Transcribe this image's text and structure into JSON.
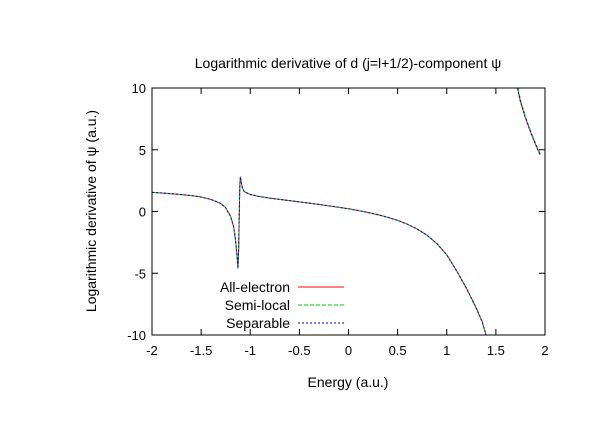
{
  "chart_data": {
    "type": "line",
    "title": "Logarithmic derivative of d (j=l+1/2)-component ψ",
    "xlabel": "Energy (a.u.)",
    "ylabel": "Logarithmic derivative of ψ (a.u.)",
    "xlim": [
      -2,
      2
    ],
    "ylim": [
      -10,
      10
    ],
    "xticks": [
      -2,
      -1.5,
      -1,
      -0.5,
      0,
      0.5,
      1,
      1.5,
      2
    ],
    "xtick_labels": [
      "-2",
      "-1.5",
      "-1",
      "-0.5",
      "0",
      "0.5",
      "1",
      "1.5",
      "2"
    ],
    "yticks": [
      -10,
      -5,
      0,
      5,
      10
    ],
    "ytick_labels": [
      "-10",
      "-5",
      "0",
      "5",
      "10"
    ],
    "grid": false,
    "legend_position": "bottom-left",
    "series": [
      {
        "name": "All-electron",
        "color": "#ff0000",
        "dash": "solid",
        "branches": [
          [
            [
              -2.0,
              1.55
            ],
            [
              -1.9,
              1.5
            ],
            [
              -1.8,
              1.44
            ],
            [
              -1.7,
              1.37
            ],
            [
              -1.6,
              1.29
            ],
            [
              -1.5,
              1.17
            ],
            [
              -1.4,
              0.98
            ],
            [
              -1.3,
              0.65
            ],
            [
              -1.25,
              0.3
            ],
            [
              -1.2,
              -0.4
            ],
            [
              -1.17,
              -1.2
            ],
            [
              -1.15,
              -2.3
            ],
            [
              -1.135,
              -3.6
            ],
            [
              -1.125,
              -4.6
            ],
            [
              -1.118,
              -3.0
            ],
            [
              -1.112,
              -0.2
            ],
            [
              -1.106,
              2.2
            ],
            [
              -1.1,
              2.8
            ],
            [
              -1.09,
              2.3
            ],
            [
              -1.08,
              1.9
            ],
            [
              -1.06,
              1.6
            ],
            [
              -1.0,
              1.38
            ],
            [
              -0.9,
              1.2
            ],
            [
              -0.8,
              1.08
            ],
            [
              -0.7,
              0.98
            ],
            [
              -0.6,
              0.88
            ],
            [
              -0.5,
              0.78
            ],
            [
              -0.4,
              0.68
            ],
            [
              -0.3,
              0.57
            ],
            [
              -0.2,
              0.46
            ],
            [
              -0.1,
              0.34
            ],
            [
              0.0,
              0.22
            ],
            [
              0.1,
              0.08
            ],
            [
              0.2,
              -0.08
            ],
            [
              0.3,
              -0.26
            ],
            [
              0.4,
              -0.47
            ],
            [
              0.5,
              -0.72
            ],
            [
              0.6,
              -1.03
            ],
            [
              0.7,
              -1.42
            ],
            [
              0.8,
              -1.92
            ],
            [
              0.9,
              -2.6
            ],
            [
              1.0,
              -3.5
            ],
            [
              1.1,
              -4.8
            ],
            [
              1.2,
              -6.2
            ],
            [
              1.3,
              -7.8
            ],
            [
              1.36,
              -8.9
            ],
            [
              1.4,
              -10.0
            ]
          ],
          [
            [
              1.72,
              10.0
            ],
            [
              1.75,
              8.9
            ],
            [
              1.8,
              7.6
            ],
            [
              1.85,
              6.5
            ],
            [
              1.9,
              5.5
            ],
            [
              1.95,
              4.6
            ]
          ]
        ]
      },
      {
        "name": "Semi-local",
        "color": "#00cc00",
        "dash": "dashed",
        "branches": [
          [
            [
              -2.0,
              1.55
            ],
            [
              -1.9,
              1.5
            ],
            [
              -1.8,
              1.44
            ],
            [
              -1.7,
              1.37
            ],
            [
              -1.6,
              1.29
            ],
            [
              -1.5,
              1.17
            ],
            [
              -1.4,
              0.98
            ],
            [
              -1.3,
              0.65
            ],
            [
              -1.25,
              0.3
            ],
            [
              -1.2,
              -0.4
            ],
            [
              -1.17,
              -1.2
            ],
            [
              -1.15,
              -2.3
            ],
            [
              -1.135,
              -3.6
            ],
            [
              -1.125,
              -4.6
            ],
            [
              -1.118,
              -3.0
            ],
            [
              -1.112,
              -0.2
            ],
            [
              -1.106,
              2.2
            ],
            [
              -1.1,
              2.8
            ],
            [
              -1.09,
              2.3
            ],
            [
              -1.08,
              1.9
            ],
            [
              -1.06,
              1.6
            ],
            [
              -1.0,
              1.38
            ],
            [
              -0.9,
              1.2
            ],
            [
              -0.8,
              1.08
            ],
            [
              -0.7,
              0.98
            ],
            [
              -0.6,
              0.88
            ],
            [
              -0.5,
              0.78
            ],
            [
              -0.4,
              0.68
            ],
            [
              -0.3,
              0.57
            ],
            [
              -0.2,
              0.46
            ],
            [
              -0.1,
              0.34
            ],
            [
              0.0,
              0.22
            ],
            [
              0.1,
              0.08
            ],
            [
              0.2,
              -0.08
            ],
            [
              0.3,
              -0.26
            ],
            [
              0.4,
              -0.47
            ],
            [
              0.5,
              -0.72
            ],
            [
              0.6,
              -1.03
            ],
            [
              0.7,
              -1.42
            ],
            [
              0.8,
              -1.93
            ],
            [
              0.9,
              -2.62
            ],
            [
              1.0,
              -3.52
            ],
            [
              1.1,
              -4.83
            ],
            [
              1.2,
              -6.25
            ],
            [
              1.3,
              -7.86
            ],
            [
              1.36,
              -8.96
            ],
            [
              1.4,
              -10.0
            ]
          ],
          [
            [
              1.725,
              10.0
            ],
            [
              1.755,
              8.9
            ],
            [
              1.805,
              7.6
            ],
            [
              1.855,
              6.5
            ],
            [
              1.905,
              5.5
            ],
            [
              1.955,
              4.6
            ]
          ]
        ]
      },
      {
        "name": "Separable",
        "color": "#0000cc",
        "dash": "dotted",
        "branches": [
          [
            [
              -2.0,
              1.55
            ],
            [
              -1.9,
              1.5
            ],
            [
              -1.8,
              1.44
            ],
            [
              -1.7,
              1.37
            ],
            [
              -1.6,
              1.29
            ],
            [
              -1.5,
              1.17
            ],
            [
              -1.4,
              0.98
            ],
            [
              -1.3,
              0.65
            ],
            [
              -1.25,
              0.3
            ],
            [
              -1.2,
              -0.4
            ],
            [
              -1.17,
              -1.2
            ],
            [
              -1.15,
              -2.3
            ],
            [
              -1.135,
              -3.6
            ],
            [
              -1.125,
              -4.6
            ],
            [
              -1.118,
              -3.0
            ],
            [
              -1.112,
              -0.2
            ],
            [
              -1.106,
              2.2
            ],
            [
              -1.1,
              2.8
            ],
            [
              -1.09,
              2.3
            ],
            [
              -1.08,
              1.9
            ],
            [
              -1.06,
              1.6
            ],
            [
              -1.0,
              1.38
            ],
            [
              -0.9,
              1.2
            ],
            [
              -0.8,
              1.08
            ],
            [
              -0.7,
              0.98
            ],
            [
              -0.6,
              0.88
            ],
            [
              -0.5,
              0.78
            ],
            [
              -0.4,
              0.68
            ],
            [
              -0.3,
              0.57
            ],
            [
              -0.2,
              0.46
            ],
            [
              -0.1,
              0.34
            ],
            [
              0.0,
              0.22
            ],
            [
              0.1,
              0.08
            ],
            [
              0.2,
              -0.08
            ],
            [
              0.3,
              -0.26
            ],
            [
              0.4,
              -0.47
            ],
            [
              0.5,
              -0.72
            ],
            [
              0.6,
              -1.03
            ],
            [
              0.7,
              -1.42
            ],
            [
              0.8,
              -1.92
            ],
            [
              0.9,
              -2.6
            ],
            [
              1.0,
              -3.5
            ],
            [
              1.1,
              -4.8
            ],
            [
              1.2,
              -6.2
            ],
            [
              1.3,
              -7.8
            ],
            [
              1.36,
              -8.9
            ],
            [
              1.4,
              -10.0
            ]
          ],
          [
            [
              1.72,
              10.0
            ],
            [
              1.75,
              8.9
            ],
            [
              1.8,
              7.6
            ],
            [
              1.85,
              6.5
            ],
            [
              1.9,
              5.5
            ],
            [
              1.95,
              4.6
            ]
          ]
        ]
      }
    ]
  }
}
